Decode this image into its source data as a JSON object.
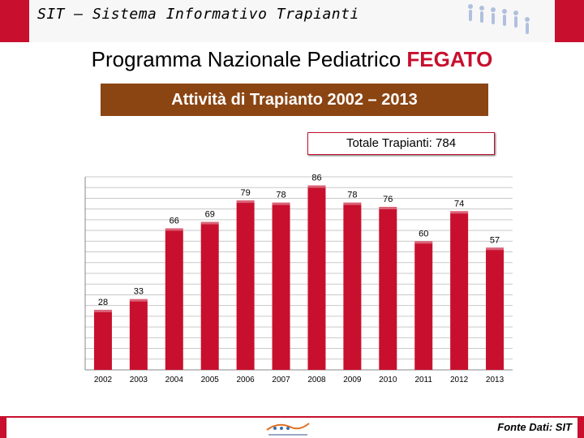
{
  "header": {
    "title": "SIT – Sistema Informativo Trapianti"
  },
  "main_title": {
    "prefix": "Programma  Nazionale  Pediatrico ",
    "highlight": "FEGATO"
  },
  "subtitle": "Attività di Trapianto  2002 – 2013",
  "total": "Totale Trapianti:  784",
  "source": "Fonte Dati: SIT",
  "colors": {
    "bar": "#c8102e",
    "accent": "#c8102e",
    "banner": "#8b4513"
  },
  "chart_data": {
    "type": "bar",
    "categories": [
      "2002",
      "2003",
      "2004",
      "2005",
      "2006",
      "2007",
      "2008",
      "2009",
      "2010",
      "2011",
      "2012",
      "2013"
    ],
    "values": [
      28,
      33,
      66,
      69,
      79,
      78,
      86,
      78,
      76,
      60,
      74,
      57
    ],
    "title": "Attività di Trapianto  2002 – 2013",
    "xlabel": "",
    "ylabel": "",
    "ylim": [
      0,
      90
    ],
    "grid": true,
    "legend": "none"
  }
}
